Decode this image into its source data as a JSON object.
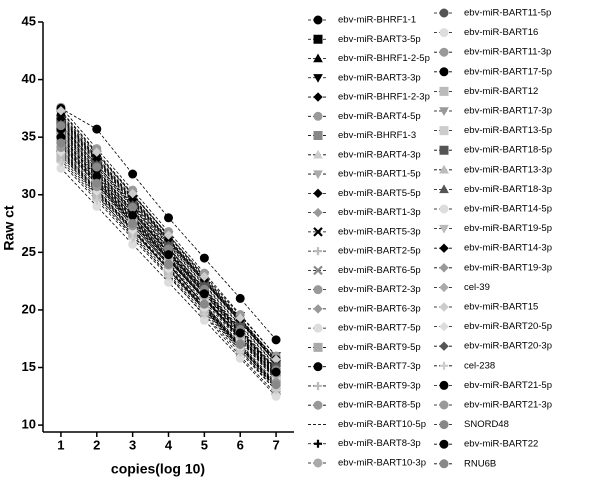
{
  "chart_data": {
    "type": "line",
    "ylabel": "Raw ct",
    "xlabel": "copies(log 10)",
    "x": [
      1,
      2,
      3,
      4,
      5,
      6,
      7
    ],
    "xlim": [
      0.5,
      7.5
    ],
    "xticks": [
      1,
      2,
      3,
      4,
      5,
      6,
      7
    ],
    "ylim": [
      9.4,
      45
    ],
    "yticks": [
      10,
      15,
      20,
      25,
      30,
      35,
      40,
      45
    ],
    "line_style": "dashed",
    "series": [
      {
        "name": "ebv-miR-BHRF1-1",
        "color": "#000000",
        "marker": "circle",
        "values": [
          36.5,
          33,
          29.5,
          26,
          22.5,
          19,
          15.5
        ]
      },
      {
        "name": "ebv-miR-BART3-5p",
        "color": "#000000",
        "marker": "square",
        "values": [
          35,
          31.5,
          28,
          24.5,
          21,
          17.5,
          14
        ]
      },
      {
        "name": "ebv-miR-BHRF1-2-5p",
        "color": "#000000",
        "marker": "triangle",
        "values": [
          34,
          30.5,
          27,
          23.5,
          20,
          16.5,
          13
        ]
      },
      {
        "name": "ebv-miR-BART3-3p",
        "color": "#000000",
        "marker": "triangle-down",
        "values": [
          37,
          33.5,
          30,
          26.5,
          23,
          19.5,
          16
        ]
      },
      {
        "name": "ebv-miR-BHRF1-2-3p",
        "color": "#000000",
        "marker": "diamond",
        "values": [
          35.5,
          32,
          28.5,
          25,
          21.5,
          18,
          14.5
        ]
      },
      {
        "name": "ebv-miR-BART4-5p",
        "color": "#999999",
        "marker": "circle",
        "values": [
          33.5,
          30,
          26.5,
          23,
          19.5,
          16,
          12.7
        ]
      },
      {
        "name": "ebv-miR-BHRF1-3",
        "color": "#888888",
        "marker": "square",
        "values": [
          36,
          32.6,
          29.2,
          25.8,
          22.4,
          19,
          15.6
        ]
      },
      {
        "name": "ebv-miR-BART4-3p",
        "color": "#cccccc",
        "marker": "triangle",
        "values": [
          34.5,
          31.1,
          27.7,
          24.3,
          20.9,
          17.5,
          14.1
        ]
      },
      {
        "name": "ebv-miR-BART1-5p",
        "color": "#aaaaaa",
        "marker": "triangle-down",
        "values": [
          35.2,
          31.8,
          28.4,
          25,
          21.6,
          18.2,
          14.8
        ]
      },
      {
        "name": "ebv-miR-BART5-5p",
        "color": "#000000",
        "marker": "diamond",
        "values": [
          33.8,
          30.4,
          27,
          23.6,
          20.2,
          16.8,
          13.4
        ]
      },
      {
        "name": "ebv-miR-BART1-3p",
        "color": "#999999",
        "marker": "diamond",
        "values": [
          37.2,
          33.6,
          30,
          26.4,
          22.8,
          19.2,
          15.6
        ]
      },
      {
        "name": "ebv-miR-BART5-3p",
        "color": "#000000",
        "marker": "cross",
        "values": [
          36.2,
          32.6,
          29,
          25.4,
          21.8,
          18.2,
          14.6
        ]
      },
      {
        "name": "ebv-miR-BART2-5p",
        "color": "#bbbbbb",
        "marker": "plus",
        "values": [
          35.8,
          32.2,
          28.6,
          25,
          21.4,
          17.8,
          14.2
        ]
      },
      {
        "name": "ebv-miR-BART6-5p",
        "color": "#888888",
        "marker": "cross",
        "values": [
          34.8,
          31.2,
          27.6,
          24,
          20.4,
          16.8,
          13.2
        ]
      },
      {
        "name": "ebv-miR-BART2-3p",
        "color": "#999999",
        "marker": "circle",
        "values": [
          37.6,
          34,
          30.4,
          26.8,
          23.2,
          19.6,
          16
        ]
      },
      {
        "name": "ebv-miR-BART6-3p",
        "color": "#999999",
        "marker": "diamond",
        "values": [
          33,
          29.7,
          26.4,
          23.1,
          19.8,
          16.5,
          13.2
        ]
      },
      {
        "name": "ebv-miR-BART7-5p",
        "color": "#dddddd",
        "marker": "circle",
        "values": [
          32.3,
          29,
          25.7,
          22.4,
          19.1,
          15.8,
          12.5
        ]
      },
      {
        "name": "ebv-miR-BART9-5p",
        "color": "#aaaaaa",
        "marker": "square",
        "values": [
          34.2,
          30.9,
          27.6,
          24.3,
          21,
          17.7,
          14.4
        ]
      },
      {
        "name": "ebv-miR-BART7-3p",
        "color": "#000000",
        "marker": "circle",
        "values": [
          37.5,
          35.7,
          31.8,
          28,
          24.5,
          21,
          17.4
        ]
      },
      {
        "name": "ebv-miR-BART9-3p",
        "color": "#bbbbbb",
        "marker": "plus",
        "values": [
          36.8,
          33.2,
          29.7,
          26.1,
          22.6,
          19.1,
          15.4
        ]
      },
      {
        "name": "ebv-miR-BART8-5p",
        "color": "#999999",
        "marker": "circle",
        "values": [
          35.3,
          31.7,
          28.2,
          24.7,
          21.2,
          17.7,
          14.3
        ]
      },
      {
        "name": "ebv-miR-BART10-5p",
        "color": "#000000",
        "marker": "none",
        "values": [
          34.4,
          30.9,
          27.3,
          23.9,
          20.4,
          16.9,
          13.5
        ]
      },
      {
        "name": "ebv-miR-BART8-3p",
        "color": "#000000",
        "marker": "plus",
        "values": [
          36.3,
          32.8,
          29.3,
          25.7,
          22.2,
          18.7,
          15.2
        ]
      },
      {
        "name": "ebv-miR-BART10-3p",
        "color": "#aaaaaa",
        "marker": "circle",
        "values": [
          33.6,
          30.2,
          26.9,
          23.5,
          20.1,
          16.7,
          13.3
        ]
      },
      {
        "name": "ebv-miR-BART11-5p",
        "color": "#555555",
        "marker": "circle",
        "values": [
          36.7,
          33.1,
          29.6,
          26,
          22.5,
          19,
          15.4
        ]
      },
      {
        "name": "ebv-miR-BART16",
        "color": "#dddddd",
        "marker": "circle",
        "values": [
          35.1,
          31.6,
          28.1,
          24.6,
          21.1,
          17.6,
          14.1
        ]
      },
      {
        "name": "ebv-miR-BART11-3p",
        "color": "#999999",
        "marker": "circle",
        "values": [
          34.6,
          31.2,
          27.8,
          24.4,
          21,
          17.6,
          14.2
        ]
      },
      {
        "name": "ebv-miR-BART17-5p",
        "color": "#000000",
        "marker": "circle",
        "values": [
          36.9,
          33.3,
          29.8,
          26.2,
          22.7,
          19.2,
          15.7
        ]
      },
      {
        "name": "ebv-miR-BART12",
        "color": "#bbbbbb",
        "marker": "square",
        "values": [
          33.2,
          29.9,
          26.6,
          23.3,
          20,
          16.7,
          13.4
        ]
      },
      {
        "name": "ebv-miR-BART17-3p",
        "color": "#999999",
        "marker": "triangle-down",
        "values": [
          35.6,
          32.1,
          28.6,
          25.1,
          21.6,
          18.1,
          14.6
        ]
      },
      {
        "name": "ebv-miR-BART13-5p",
        "color": "#cccccc",
        "marker": "square",
        "values": [
          34.9,
          31.4,
          27.9,
          24.4,
          20.9,
          17.4,
          13.9
        ]
      },
      {
        "name": "ebv-miR-BART18-5p",
        "color": "#555555",
        "marker": "square",
        "values": [
          36.4,
          32.9,
          29.4,
          25.9,
          22.4,
          18.9,
          15.4
        ]
      },
      {
        "name": "ebv-miR-BART13-3p",
        "color": "#bbbbbb",
        "marker": "triangle",
        "values": [
          33.9,
          30.5,
          27.1,
          23.7,
          20.3,
          16.9,
          13.5
        ]
      },
      {
        "name": "ebv-miR-BART18-3p",
        "color": "#555555",
        "marker": "triangle",
        "values": [
          35.9,
          32.4,
          28.9,
          25.4,
          21.9,
          18.4,
          14.9
        ]
      },
      {
        "name": "ebv-miR-BART14-5p",
        "color": "#dddddd",
        "marker": "circle",
        "values": [
          34.3,
          30.9,
          27.5,
          24.1,
          20.7,
          17.3,
          13.9
        ]
      },
      {
        "name": "ebv-miR-BART19-5p",
        "color": "#bbbbbb",
        "marker": "triangle-down",
        "values": [
          33.4,
          30.1,
          26.8,
          23.5,
          20.2,
          16.9,
          13.6
        ]
      },
      {
        "name": "ebv-miR-BART14-3p",
        "color": "#000000",
        "marker": "diamond",
        "values": [
          36.6,
          33.1,
          29.6,
          26.1,
          22.6,
          19.1,
          15.6
        ]
      },
      {
        "name": "ebv-miR-BART19-3p",
        "color": "#999999",
        "marker": "diamond",
        "values": [
          35.4,
          31.9,
          28.4,
          24.9,
          21.4,
          17.9,
          14.4
        ]
      },
      {
        "name": "cel-39",
        "color": "#aaaaaa",
        "marker": "diamond",
        "values": [
          34.7,
          31.3,
          27.9,
          24.5,
          21.1,
          17.7,
          14.3
        ]
      },
      {
        "name": "ebv-miR-BART15",
        "color": "#cccccc",
        "marker": "diamond",
        "values": [
          37.3,
          33.7,
          30.1,
          26.5,
          22.9,
          19.3,
          15.7
        ]
      },
      {
        "name": "ebv-miR-BART20-5p",
        "color": "#dddddd",
        "marker": "diamond",
        "values": [
          33.7,
          30.3,
          26.9,
          23.5,
          20.1,
          16.7,
          13.3
        ]
      },
      {
        "name": "ebv-miR-BART20-3p",
        "color": "#555555",
        "marker": "diamond",
        "values": [
          36.1,
          32.6,
          29.1,
          25.6,
          22.1,
          18.6,
          15.1
        ]
      },
      {
        "name": "cel-238",
        "color": "#cccccc",
        "marker": "plus",
        "values": [
          32.8,
          29.5,
          26.2,
          22.9,
          19.6,
          16.3,
          13
        ]
      },
      {
        "name": "ebv-miR-BART21-5p",
        "color": "#000000",
        "marker": "circle",
        "values": [
          35.7,
          32.2,
          28.7,
          25.2,
          21.7,
          18.2,
          14.7
        ]
      },
      {
        "name": "ebv-miR-BART21-3p",
        "color": "#999999",
        "marker": "circle",
        "values": [
          34.1,
          30.7,
          27.3,
          23.9,
          20.5,
          17.1,
          13.7
        ]
      },
      {
        "name": "SNORD48",
        "color": "#888888",
        "marker": "circle",
        "values": [
          36,
          32.4,
          28.9,
          25.3,
          21.8,
          18.3,
          14.8
        ]
      },
      {
        "name": "ebv-miR-BART22",
        "color": "#000000",
        "marker": "circle",
        "values": [
          35,
          31.6,
          28.2,
          24.8,
          21.4,
          18,
          14.6
        ]
      },
      {
        "name": "RNU6B",
        "color": "#888888",
        "marker": "circle",
        "values": [
          34.5,
          31,
          27.5,
          24,
          20.5,
          17,
          13.5
        ]
      }
    ]
  }
}
